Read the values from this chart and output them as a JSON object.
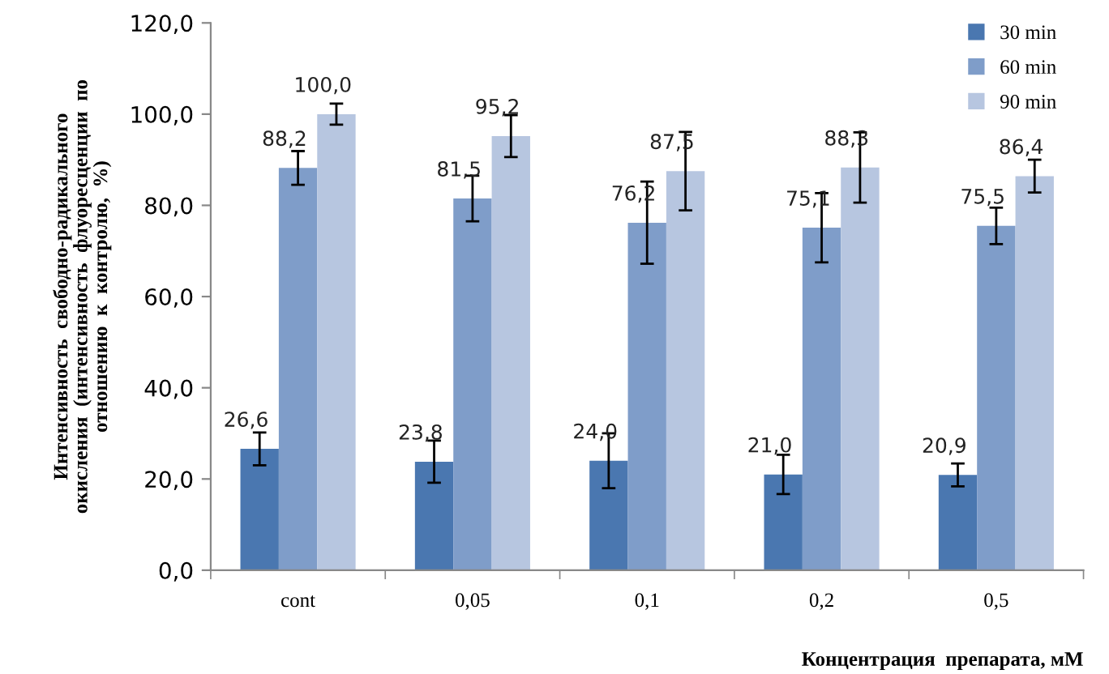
{
  "chart_data": {
    "type": "bar",
    "xlabel": "Концентрация  препарата, мМ",
    "ylabel": "Интенсивность  свободно-радикального\nокисления  (интенсивность  флуоресценции  по\nотношению  к  контролю,  %)",
    "categories": [
      "cont",
      "0,05",
      "0,1",
      "0,2",
      "0,5"
    ],
    "series": [
      {
        "name": "30 min",
        "color": "#4a77b0",
        "values": [
          26.6,
          23.8,
          24.0,
          21.0,
          20.9
        ],
        "errors": [
          3.6,
          4.6,
          6.0,
          4.3,
          2.5
        ],
        "value_labels": [
          "26,6",
          "23,8",
          "24,0",
          "21,0",
          "20,9"
        ]
      },
      {
        "name": "60 min",
        "color": "#7f9dc9",
        "values": [
          88.2,
          81.5,
          76.2,
          75.1,
          75.5
        ],
        "errors": [
          3.7,
          5.0,
          9.0,
          7.6,
          4.0
        ],
        "value_labels": [
          "88,2",
          "81,5",
          "76,2",
          "75,1",
          "75,5"
        ]
      },
      {
        "name": "90 min",
        "color": "#b7c6e0",
        "values": [
          100.0,
          95.2,
          87.5,
          88.3,
          86.4
        ],
        "errors": [
          2.3,
          4.6,
          8.6,
          7.7,
          3.6
        ],
        "value_labels": [
          "100,0",
          "95,2",
          "87,5",
          "88,3",
          "86,4"
        ]
      }
    ],
    "ylim": [
      0,
      120
    ],
    "yticks": [
      {
        "value": 0,
        "label": "0,0"
      },
      {
        "value": 20,
        "label": "20,0"
      },
      {
        "value": 40,
        "label": "40,0"
      },
      {
        "value": 60,
        "label": "60,0"
      },
      {
        "value": 80,
        "label": "80,0"
      },
      {
        "value": 100,
        "label": "100,0"
      },
      {
        "value": 120,
        "label": "120,0"
      }
    ],
    "legend": "top right",
    "grid": false
  }
}
